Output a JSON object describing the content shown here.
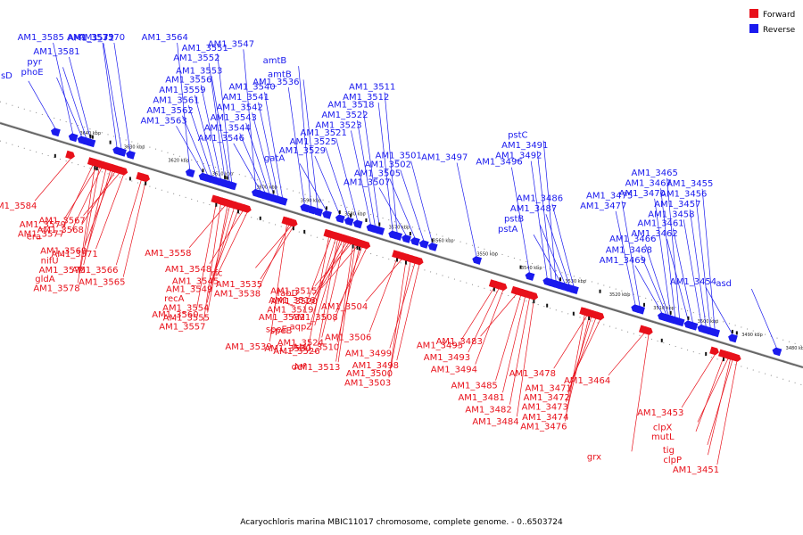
{
  "caption": "Acaryochloris marina MBIC11017 chromosome, complete genome. - 0..6503724",
  "legend": {
    "forward_label": "Forward",
    "reverse_label": "Reverse",
    "forward_color": "#e8101a",
    "reverse_color": "#1a1aee"
  },
  "axis": {
    "start_kbp": 3480,
    "end_kbp": 3640,
    "ticks": [
      "3640 kbp",
      "3630 kbp",
      "3620 kbp",
      "3610 kbp",
      "3600 kbp",
      "3590 kbp",
      "3580 kbp",
      "3570 kbp",
      "3560 kbp",
      "3550 kbp",
      "3540 kbp",
      "3530 kbp",
      "3520 kbp",
      "3510 kbp",
      "3500 kbp",
      "3490 kbp",
      "3480 kbp"
    ]
  },
  "reverse_genes": [
    {
      "label": "hisD",
      "kbp": 3637.5
    },
    {
      "label": "phoE",
      "kbp": 3631.5
    },
    {
      "label": "pyr",
      "kbp": 3630.5
    },
    {
      "label": "AM1_3581",
      "kbp": 3629.5
    },
    {
      "label": "AM1_3585",
      "kbp": 3633.5
    },
    {
      "label": "AM1_3572",
      "kbp": 3622.5
    },
    {
      "label": "AM1_3570",
      "kbp": 3620.5
    },
    {
      "label": "AM1_3573",
      "kbp": 3623.5
    },
    {
      "label": "AM1_3564",
      "kbp": 3607
    },
    {
      "label": "AM1_3563",
      "kbp": 3604
    },
    {
      "label": "AM1_3562",
      "kbp": 3603
    },
    {
      "label": "AM1_3561",
      "kbp": 3602
    },
    {
      "label": "AM1_3559",
      "kbp": 3601
    },
    {
      "label": "AM1_3556",
      "kbp": 3600
    },
    {
      "label": "AM1_3553",
      "kbp": 3598
    },
    {
      "label": "AM1_3552",
      "kbp": 3599
    },
    {
      "label": "AM1_3551",
      "kbp": 3597.5
    },
    {
      "label": "AM1_3547",
      "kbp": 3592
    },
    {
      "label": "AM1_3546",
      "kbp": 3591
    },
    {
      "label": "AM1_3544",
      "kbp": 3590
    },
    {
      "label": "AM1_3543",
      "kbp": 3589
    },
    {
      "label": "AM1_3542",
      "kbp": 3588
    },
    {
      "label": "AM1_3541",
      "kbp": 3587
    },
    {
      "label": "AM1_3540",
      "kbp": 3586
    },
    {
      "label": "AM1_3536",
      "kbp": 3581
    },
    {
      "label": "amtB",
      "kbp": 3578
    },
    {
      "label": "amtB",
      "kbp": 3579.5
    },
    {
      "label": "gatA",
      "kbp": 3576
    },
    {
      "label": "AM1_3529",
      "kbp": 3573
    },
    {
      "label": "AM1_3525",
      "kbp": 3571
    },
    {
      "label": "AM1_3521",
      "kbp": 3569
    },
    {
      "label": "AM1_3523",
      "kbp": 3566
    },
    {
      "label": "AM1_3522",
      "kbp": 3565
    },
    {
      "label": "AM1_3518",
      "kbp": 3564
    },
    {
      "label": "AM1_3512",
      "kbp": 3561
    },
    {
      "label": "AM1_3511",
      "kbp": 3560
    },
    {
      "label": "AM1_3507",
      "kbp": 3558
    },
    {
      "label": "AM1_3505",
      "kbp": 3556
    },
    {
      "label": "AM1_3502",
      "kbp": 3554
    },
    {
      "label": "AM1_3501",
      "kbp": 3552
    },
    {
      "label": "AM1_3497",
      "kbp": 3542
    },
    {
      "label": "AM1_3496",
      "kbp": 3530
    },
    {
      "label": "AM1_3492",
      "kbp": 3526
    },
    {
      "label": "AM1_3491",
      "kbp": 3525
    },
    {
      "label": "pstC",
      "kbp": 3524
    },
    {
      "label": "pstA",
      "kbp": 3523
    },
    {
      "label": "pstB",
      "kbp": 3522
    },
    {
      "label": "AM1_3487",
      "kbp": 3521
    },
    {
      "label": "AM1_3486",
      "kbp": 3520
    },
    {
      "label": "AM1_3477",
      "kbp": 3506
    },
    {
      "label": "AM1_3475",
      "kbp": 3505
    },
    {
      "label": "AM1_3470",
      "kbp": 3498
    },
    {
      "label": "AM1_3467",
      "kbp": 3497
    },
    {
      "label": "AM1_3465",
      "kbp": 3496
    },
    {
      "label": "AM1_3469",
      "kbp": 3500
    },
    {
      "label": "AM1_3468",
      "kbp": 3499
    },
    {
      "label": "AM1_3466",
      "kbp": 3498.5
    },
    {
      "label": "AM1_3462",
      "kbp": 3494
    },
    {
      "label": "AM1_3461",
      "kbp": 3493
    },
    {
      "label": "AM1_3458",
      "kbp": 3491
    },
    {
      "label": "AM1_3457",
      "kbp": 3490
    },
    {
      "label": "AM1_3456",
      "kbp": 3489
    },
    {
      "label": "AM1_3455",
      "kbp": 3488
    },
    {
      "label": "AM1_3454",
      "kbp": 3484
    },
    {
      "label": "asd",
      "kbp": 3474
    }
  ],
  "forward_genes": [
    {
      "label": "AM1_3584",
      "kbp": 3634
    },
    {
      "label": "AM1_3579",
      "kbp": 3628
    },
    {
      "label": "era",
      "kbp": 3627
    },
    {
      "label": "AM1_3571",
      "kbp": 3622
    },
    {
      "label": "nifU",
      "kbp": 3625
    },
    {
      "label": "AM1_3575",
      "kbp": 3626
    },
    {
      "label": "gldA",
      "kbp": 3627.5
    },
    {
      "label": "AM1_3578",
      "kbp": 3628.5
    },
    {
      "label": "AM1_3567",
      "kbp": 3623
    },
    {
      "label": "AM1_3568",
      "kbp": 3624
    },
    {
      "label": "AM1_3577",
      "kbp": 3629
    },
    {
      "label": "AM1_3569",
      "kbp": 3624.5
    },
    {
      "label": "AM1_3566",
      "kbp": 3618
    },
    {
      "label": "AM1_3565",
      "kbp": 3617
    },
    {
      "label": "AM1_3560",
      "kbp": 3601
    },
    {
      "label": "AM1_3557",
      "kbp": 3600
    },
    {
      "label": "AM1_3558",
      "kbp": 3599
    },
    {
      "label": "AM1_3548",
      "kbp": 3595
    },
    {
      "label": "AM1_3545",
      "kbp": 3594
    },
    {
      "label": "AM1_3549",
      "kbp": 3596
    },
    {
      "label": "recA",
      "kbp": 3597
    },
    {
      "label": "AM1_3554",
      "kbp": 3598
    },
    {
      "label": "AM1_3555",
      "kbp": 3598.5
    },
    {
      "label": "AM1_3539",
      "kbp": 3585
    },
    {
      "label": "rfc",
      "kbp": 3584
    },
    {
      "label": "AM1_3535",
      "kbp": 3583.5
    },
    {
      "label": "AM1_3538",
      "kbp": 3584.5
    },
    {
      "label": "AM1_3532",
      "kbp": 3575
    },
    {
      "label": "speB",
      "kbp": 3573
    },
    {
      "label": "AM1_3524",
      "kbp": 3572
    },
    {
      "label": "AM1_3526",
      "kbp": 3573.5
    },
    {
      "label": "def",
      "kbp": 3570
    },
    {
      "label": "fabD",
      "kbp": 3569
    },
    {
      "label": "AM1_3520",
      "kbp": 3571
    },
    {
      "label": "AM1_3508",
      "kbp": 3567
    },
    {
      "label": "aqpZ",
      "kbp": 3568
    },
    {
      "label": "speE",
      "kbp": 3574
    },
    {
      "label": "AM1_3510",
      "kbp": 3568.5
    },
    {
      "label": "AM1_3530",
      "kbp": 3575.5
    },
    {
      "label": "AM1_3513",
      "kbp": 3569.5
    },
    {
      "label": "AM1_3515",
      "kbp": 3570.5
    },
    {
      "label": "AM1_3516",
      "kbp": 3571.5
    },
    {
      "label": "AM1_3519",
      "kbp": 3572.5
    },
    {
      "label": "AM1_3506",
      "kbp": 3560
    },
    {
      "label": "AM1_3499",
      "kbp": 3556
    },
    {
      "label": "AM1_3498",
      "kbp": 3555
    },
    {
      "label": "AM1_3500",
      "kbp": 3557
    },
    {
      "label": "AM1_3503",
      "kbp": 3558
    },
    {
      "label": "AM1_3504",
      "kbp": 3559
    },
    {
      "label": "AM1_3495",
      "kbp": 3538
    },
    {
      "label": "AM1_3493",
      "kbp": 3537
    },
    {
      "label": "AM1_3494",
      "kbp": 3536
    },
    {
      "label": "AM1_3485",
      "kbp": 3532
    },
    {
      "label": "AM1_3481",
      "kbp": 3531
    },
    {
      "label": "AM1_3482",
      "kbp": 3530
    },
    {
      "label": "AM1_3484",
      "kbp": 3529
    },
    {
      "label": "AM1_3483",
      "kbp": 3533
    },
    {
      "label": "AM1_3478",
      "kbp": 3517
    },
    {
      "label": "AM1_3471",
      "kbp": 3514
    },
    {
      "label": "AM1_3472",
      "kbp": 3515
    },
    {
      "label": "AM1_3473",
      "kbp": 3516
    },
    {
      "label": "AM1_3474",
      "kbp": 3516.5
    },
    {
      "label": "AM1_3476",
      "kbp": 3517.5
    },
    {
      "label": "grx",
      "kbp": 3503
    },
    {
      "label": "AM1_3464",
      "kbp": 3504
    },
    {
      "label": "AM1_3453",
      "kbp": 3488
    },
    {
      "label": "clpX",
      "kbp": 3485
    },
    {
      "label": "mutL",
      "kbp": 3486
    },
    {
      "label": "tig",
      "kbp": 3484
    },
    {
      "label": "clpP",
      "kbp": 3484.5
    },
    {
      "label": "AM1_3451",
      "kbp": 3483
    }
  ]
}
